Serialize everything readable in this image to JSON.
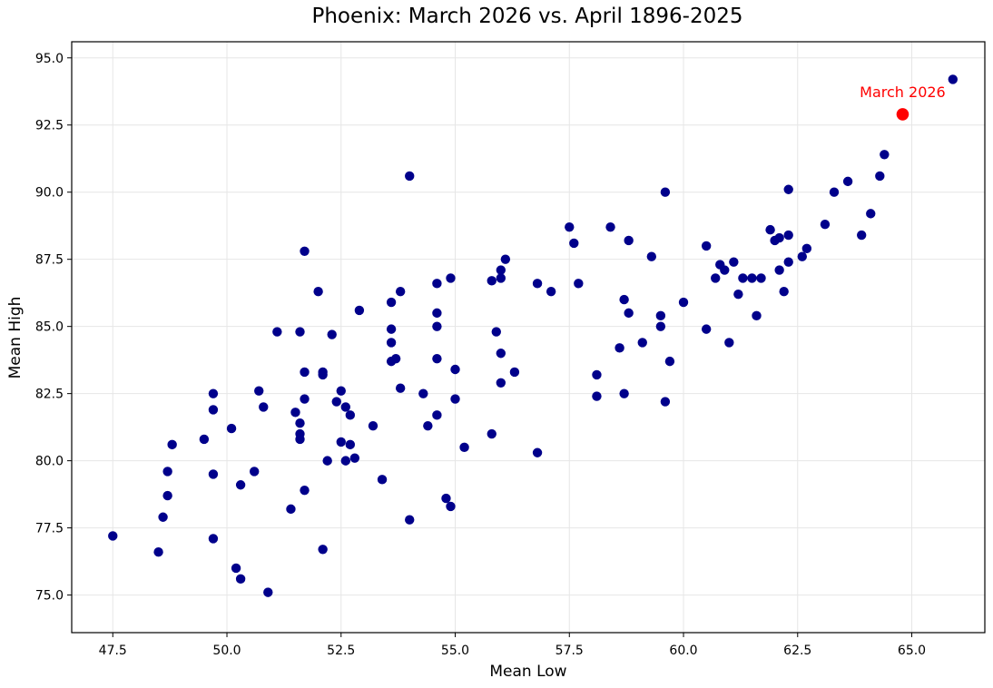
{
  "chart_data": {
    "type": "scatter",
    "title": "Phoenix: March 2026 vs. April 1896-2025",
    "xlabel": "Mean Low",
    "ylabel": "Mean High",
    "xlim": [
      46.6,
      66.6
    ],
    "ylim": [
      73.6,
      95.6
    ],
    "xticks": [
      47.5,
      50.0,
      52.5,
      55.0,
      57.5,
      60.0,
      62.5,
      65.0
    ],
    "xtick_labels": [
      "47.5",
      "50.0",
      "52.5",
      "55.0",
      "57.5",
      "60.0",
      "62.5",
      "65.0"
    ],
    "yticks": [
      75.0,
      77.5,
      80.0,
      82.5,
      85.0,
      87.5,
      90.0,
      92.5,
      95.0
    ],
    "ytick_labels": [
      "75.0",
      "77.5",
      "80.0",
      "82.5",
      "85.0",
      "87.5",
      "90.0",
      "92.5",
      "95.0"
    ],
    "grid": true,
    "series": [
      {
        "color": "#00008b",
        "points": [
          [
            47.5,
            77.2
          ],
          [
            48.5,
            76.6
          ],
          [
            48.6,
            77.9
          ],
          [
            48.7,
            78.7
          ],
          [
            48.7,
            79.6
          ],
          [
            48.8,
            80.6
          ],
          [
            49.5,
            80.8
          ],
          [
            49.7,
            82.5
          ],
          [
            49.7,
            81.9
          ],
          [
            49.7,
            79.5
          ],
          [
            49.7,
            77.1
          ],
          [
            50.1,
            81.2
          ],
          [
            50.2,
            76.0
          ],
          [
            50.3,
            75.6
          ],
          [
            50.3,
            79.1
          ],
          [
            50.6,
            79.6
          ],
          [
            50.7,
            82.6
          ],
          [
            50.8,
            82.0
          ],
          [
            50.9,
            75.1
          ],
          [
            51.1,
            84.8
          ],
          [
            51.4,
            78.2
          ],
          [
            51.5,
            81.8
          ],
          [
            51.6,
            81.4
          ],
          [
            51.6,
            81.0
          ],
          [
            51.6,
            80.8
          ],
          [
            51.6,
            84.8
          ],
          [
            51.7,
            87.8
          ],
          [
            51.7,
            83.3
          ],
          [
            51.7,
            82.3
          ],
          [
            51.7,
            78.9
          ],
          [
            52.0,
            86.3
          ],
          [
            52.1,
            83.3
          ],
          [
            52.1,
            83.2
          ],
          [
            52.1,
            76.7
          ],
          [
            52.2,
            80.0
          ],
          [
            52.3,
            84.7
          ],
          [
            52.4,
            82.2
          ],
          [
            52.5,
            82.6
          ],
          [
            52.5,
            80.7
          ],
          [
            52.6,
            82.0
          ],
          [
            52.6,
            80.0
          ],
          [
            52.7,
            81.7
          ],
          [
            52.7,
            80.6
          ],
          [
            52.8,
            80.1
          ],
          [
            52.9,
            85.6
          ],
          [
            53.2,
            81.3
          ],
          [
            53.4,
            79.3
          ],
          [
            53.6,
            85.9
          ],
          [
            53.6,
            84.9
          ],
          [
            53.6,
            84.4
          ],
          [
            53.6,
            83.7
          ],
          [
            53.7,
            83.8
          ],
          [
            53.8,
            86.3
          ],
          [
            53.8,
            82.7
          ],
          [
            54.0,
            90.6
          ],
          [
            54.0,
            77.8
          ],
          [
            54.3,
            82.5
          ],
          [
            54.4,
            81.3
          ],
          [
            54.6,
            86.6
          ],
          [
            54.6,
            85.5
          ],
          [
            54.6,
            85.0
          ],
          [
            54.6,
            83.8
          ],
          [
            54.6,
            81.7
          ],
          [
            54.8,
            78.6
          ],
          [
            54.9,
            86.8
          ],
          [
            54.9,
            78.3
          ],
          [
            55.0,
            83.4
          ],
          [
            55.0,
            82.3
          ],
          [
            55.2,
            80.5
          ],
          [
            55.8,
            86.7
          ],
          [
            55.8,
            81.0
          ],
          [
            55.9,
            84.8
          ],
          [
            56.0,
            87.1
          ],
          [
            56.0,
            86.8
          ],
          [
            56.0,
            84.0
          ],
          [
            56.0,
            82.9
          ],
          [
            56.1,
            87.5
          ],
          [
            56.3,
            83.3
          ],
          [
            56.8,
            86.6
          ],
          [
            56.8,
            80.3
          ],
          [
            57.1,
            86.3
          ],
          [
            57.5,
            88.7
          ],
          [
            57.6,
            88.1
          ],
          [
            57.7,
            86.6
          ],
          [
            58.1,
            83.2
          ],
          [
            58.1,
            82.4
          ],
          [
            58.4,
            88.7
          ],
          [
            58.6,
            84.2
          ],
          [
            58.7,
            86.0
          ],
          [
            58.7,
            82.5
          ],
          [
            58.8,
            88.2
          ],
          [
            58.8,
            85.5
          ],
          [
            59.1,
            84.4
          ],
          [
            59.3,
            87.6
          ],
          [
            59.5,
            85.4
          ],
          [
            59.5,
            85.0
          ],
          [
            59.6,
            90.0
          ],
          [
            59.6,
            82.2
          ],
          [
            59.7,
            83.7
          ],
          [
            60.0,
            85.9
          ],
          [
            60.5,
            88.0
          ],
          [
            60.5,
            84.9
          ],
          [
            60.7,
            86.8
          ],
          [
            60.8,
            87.3
          ],
          [
            60.9,
            87.1
          ],
          [
            61.0,
            84.4
          ],
          [
            61.1,
            87.4
          ],
          [
            61.2,
            86.2
          ],
          [
            61.3,
            86.8
          ],
          [
            61.5,
            86.8
          ],
          [
            61.6,
            85.4
          ],
          [
            61.7,
            86.8
          ],
          [
            61.9,
            88.6
          ],
          [
            62.0,
            88.2
          ],
          [
            62.1,
            88.3
          ],
          [
            62.1,
            87.1
          ],
          [
            62.2,
            86.3
          ],
          [
            62.3,
            90.1
          ],
          [
            62.3,
            88.4
          ],
          [
            62.3,
            87.4
          ],
          [
            62.6,
            87.6
          ],
          [
            62.7,
            87.9
          ],
          [
            63.1,
            88.8
          ],
          [
            63.3,
            90.0
          ],
          [
            63.6,
            90.4
          ],
          [
            63.9,
            88.4
          ],
          [
            64.1,
            89.2
          ],
          [
            64.3,
            90.6
          ],
          [
            64.4,
            91.4
          ],
          [
            65.9,
            94.2
          ]
        ]
      }
    ],
    "highlight": {
      "label": "March 2026",
      "x": 64.8,
      "y": 92.9,
      "color": "#ff0000"
    }
  }
}
